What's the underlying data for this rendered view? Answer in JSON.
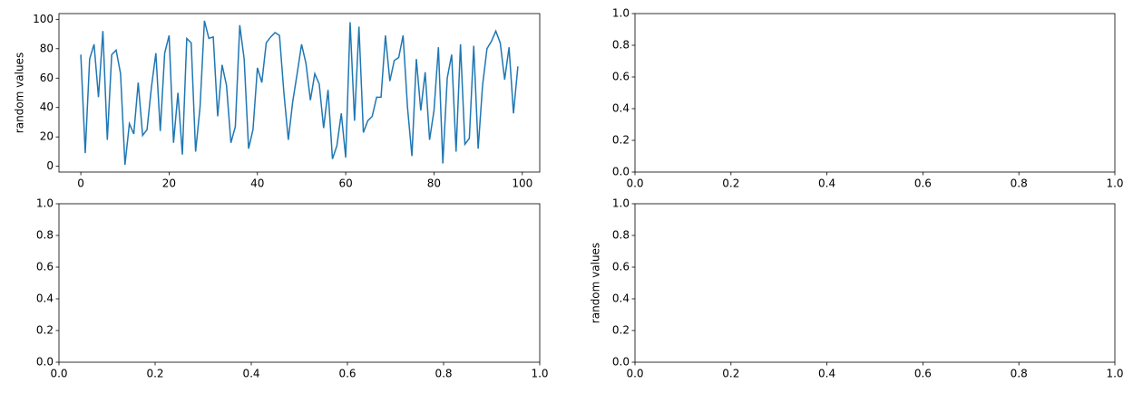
{
  "chart_data": [
    {
      "type": "line",
      "ylabel": "random values",
      "color": "#1f77b4",
      "x": [
        0,
        1,
        2,
        3,
        4,
        5,
        6,
        7,
        8,
        9,
        10,
        11,
        12,
        13,
        14,
        15,
        16,
        17,
        18,
        19,
        20,
        21,
        22,
        23,
        24,
        25,
        26,
        27,
        28,
        29,
        30,
        31,
        32,
        33,
        34,
        35,
        36,
        37,
        38,
        39,
        40,
        41,
        42,
        43,
        44,
        45,
        46,
        47,
        48,
        49,
        50,
        51,
        52,
        53,
        54,
        55,
        56,
        57,
        58,
        59,
        60,
        61,
        62,
        63,
        64,
        65,
        66,
        67,
        68,
        69,
        70,
        71,
        72,
        73,
        74,
        75,
        76,
        77,
        78,
        79,
        80,
        81,
        82,
        83,
        84,
        85,
        86,
        87,
        88,
        89,
        90,
        91,
        92,
        93,
        94,
        95,
        96,
        97,
        98,
        99
      ],
      "values": [
        76,
        9,
        73,
        83,
        47,
        92,
        18,
        76,
        79,
        63,
        1,
        29,
        22,
        57,
        21,
        25,
        54,
        77,
        24,
        77,
        89,
        16,
        50,
        8,
        87,
        84,
        10,
        40,
        99,
        87,
        88,
        34,
        69,
        55,
        16,
        27,
        96,
        73,
        12,
        25,
        67,
        57,
        84,
        88,
        91,
        89,
        50,
        18,
        44,
        63,
        83,
        70,
        45,
        63,
        56,
        26,
        52,
        5,
        14,
        36,
        6,
        98,
        31,
        95,
        23,
        31,
        34,
        47,
        47,
        89,
        58,
        72,
        74,
        89,
        40,
        7,
        73,
        38,
        64,
        18,
        38,
        81,
        2,
        60,
        76,
        10,
        83,
        15,
        19,
        82,
        12,
        55,
        80,
        85,
        92,
        84,
        59,
        81,
        36,
        68
      ],
      "xlim": [
        -4.95,
        103.95
      ],
      "ylim": [
        -3.9,
        103.9
      ],
      "xticks": [
        0,
        20,
        40,
        60,
        80,
        100
      ],
      "yticks": [
        0,
        20,
        40,
        60,
        80,
        100
      ]
    },
    {
      "type": "line",
      "xlim": [
        0,
        1
      ],
      "ylim": [
        0,
        1
      ],
      "xticks": [
        {
          "value": 0,
          "label": "0.0"
        },
        {
          "value": 0.2,
          "label": "0.2"
        },
        {
          "value": 0.4,
          "label": "0.4"
        },
        {
          "value": 0.6,
          "label": "0.6"
        },
        {
          "value": 0.8,
          "label": "0.8"
        },
        {
          "value": 1,
          "label": "1.0"
        }
      ],
      "yticks": [
        {
          "value": 0,
          "label": "0.0"
        },
        {
          "value": 0.2,
          "label": "0.2"
        },
        {
          "value": 0.4,
          "label": "0.4"
        },
        {
          "value": 0.6,
          "label": "0.6"
        },
        {
          "value": 0.8,
          "label": "0.8"
        },
        {
          "value": 1,
          "label": "1.0"
        }
      ]
    },
    {
      "type": "line",
      "xlim": [
        0,
        1
      ],
      "ylim": [
        0,
        1
      ],
      "xticks": [
        {
          "value": 0,
          "label": "0.0"
        },
        {
          "value": 0.2,
          "label": "0.2"
        },
        {
          "value": 0.4,
          "label": "0.4"
        },
        {
          "value": 0.6,
          "label": "0.6"
        },
        {
          "value": 0.8,
          "label": "0.8"
        },
        {
          "value": 1,
          "label": "1.0"
        }
      ],
      "yticks": [
        {
          "value": 0,
          "label": "0.0"
        },
        {
          "value": 0.2,
          "label": "0.2"
        },
        {
          "value": 0.4,
          "label": "0.4"
        },
        {
          "value": 0.6,
          "label": "0.6"
        },
        {
          "value": 0.8,
          "label": "0.8"
        },
        {
          "value": 1,
          "label": "1.0"
        }
      ]
    },
    {
      "type": "line",
      "ylabel": "random values",
      "xlim": [
        0,
        1
      ],
      "ylim": [
        0,
        1
      ],
      "xticks": [
        {
          "value": 0,
          "label": "0.0"
        },
        {
          "value": 0.2,
          "label": "0.2"
        },
        {
          "value": 0.4,
          "label": "0.4"
        },
        {
          "value": 0.6,
          "label": "0.6"
        },
        {
          "value": 0.8,
          "label": "0.8"
        },
        {
          "value": 1,
          "label": "1.0"
        }
      ],
      "yticks": [
        {
          "value": 0,
          "label": "0.0"
        },
        {
          "value": 0.2,
          "label": "0.2"
        },
        {
          "value": 0.4,
          "label": "0.4"
        },
        {
          "value": 0.6,
          "label": "0.6"
        },
        {
          "value": 0.8,
          "label": "0.8"
        },
        {
          "value": 1,
          "label": "1.0"
        }
      ]
    }
  ]
}
